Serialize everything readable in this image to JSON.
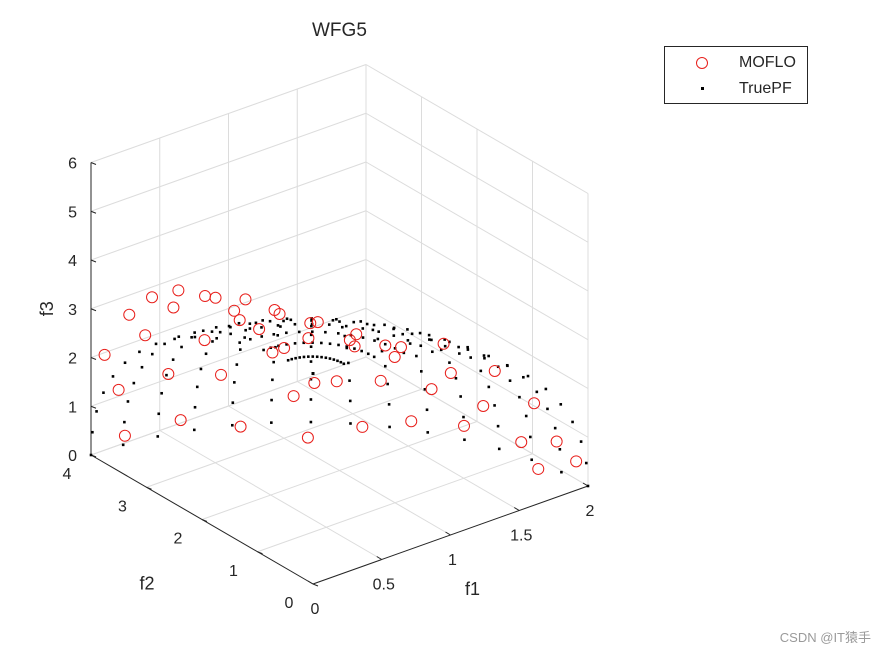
{
  "chart_data": {
    "type": "scatter",
    "title": "WFG5",
    "xlabel": "f1",
    "ylabel": "f2",
    "zlabel": "f3",
    "xlim": [
      0,
      2
    ],
    "ylim": [
      0,
      4
    ],
    "zlim": [
      0,
      6
    ],
    "xticks": [
      "0",
      "0.5",
      "1",
      "1.5",
      "2"
    ],
    "yticks": [
      "0",
      "1",
      "2",
      "3",
      "4"
    ],
    "zticks": [
      "0",
      "1",
      "2",
      "3",
      "4",
      "5",
      "6"
    ],
    "grid": true,
    "legend_position": "top-right",
    "series": [
      {
        "name": "MOFLO",
        "marker": "circle",
        "color": "#e8201c",
        "points": [
          [
            0.03,
            0.05,
            4.06
          ],
          [
            0.55,
            0.06,
            4.3
          ],
          [
            0.97,
            0.05,
            3.92
          ],
          [
            1.33,
            0.02,
            3.02
          ],
          [
            1.62,
            0.03,
            2.06
          ],
          [
            1.78,
            0.02,
            1.12
          ],
          [
            1.93,
            0.04,
            0.55
          ],
          [
            0.04,
            0.62,
            4.39
          ],
          [
            0.47,
            0.5,
            4.2
          ],
          [
            0.85,
            0.52,
            3.66
          ],
          [
            1.18,
            0.44,
            2.85
          ],
          [
            1.46,
            0.55,
            1.82
          ],
          [
            1.68,
            0.41,
            0.95
          ],
          [
            1.84,
            0.5,
            0.18
          ],
          [
            0.04,
            1.07,
            4.48
          ],
          [
            0.4,
            1.04,
            4.26
          ],
          [
            0.71,
            0.98,
            3.76
          ],
          [
            1.01,
            1.03,
            2.96
          ],
          [
            1.29,
            1.06,
            2.0
          ],
          [
            1.51,
            1.02,
            1.05
          ],
          [
            0.04,
            1.52,
            4.56
          ],
          [
            0.33,
            1.51,
            4.29
          ],
          [
            0.62,
            1.45,
            3.79
          ],
          [
            0.9,
            1.48,
            2.99
          ],
          [
            1.11,
            1.53,
            2.04
          ],
          [
            1.32,
            1.5,
            1.02
          ],
          [
            0.03,
            2.02,
            4.54
          ],
          [
            0.3,
            1.96,
            4.24
          ],
          [
            0.56,
            1.99,
            3.66
          ],
          [
            0.79,
            2.04,
            2.9
          ],
          [
            0.98,
            2.0,
            1.85
          ],
          [
            1.15,
            1.96,
            0.77
          ],
          [
            0.03,
            2.5,
            4.34
          ],
          [
            0.28,
            2.45,
            3.97
          ],
          [
            0.48,
            2.51,
            3.27
          ],
          [
            0.69,
            2.44,
            2.44
          ],
          [
            0.86,
            2.48,
            1.35
          ],
          [
            0.98,
            2.52,
            0.35
          ],
          [
            0.02,
            2.95,
            3.91
          ],
          [
            0.2,
            3.01,
            3.48
          ],
          [
            0.39,
            2.92,
            2.68
          ],
          [
            0.55,
            3.02,
            1.74
          ],
          [
            0.66,
            2.94,
            0.62
          ],
          [
            0.02,
            3.36,
            3.28
          ],
          [
            0.16,
            3.42,
            2.68
          ],
          [
            0.3,
            3.35,
            1.79
          ],
          [
            0.41,
            3.4,
            0.7
          ],
          [
            0.01,
            3.78,
            2.19
          ],
          [
            0.1,
            3.75,
            1.4
          ],
          [
            0.17,
            3.81,
            0.35
          ]
        ]
      },
      {
        "name": "TruePF",
        "marker": "dot",
        "color": "#000000",
        "grid_spec": {
          "a_steps": 14,
          "b_steps": 14,
          "f1_max": 2,
          "f2_max": 4,
          "f3_max": 6
        }
      }
    ]
  },
  "watermark": "CSDN @IT猿手"
}
